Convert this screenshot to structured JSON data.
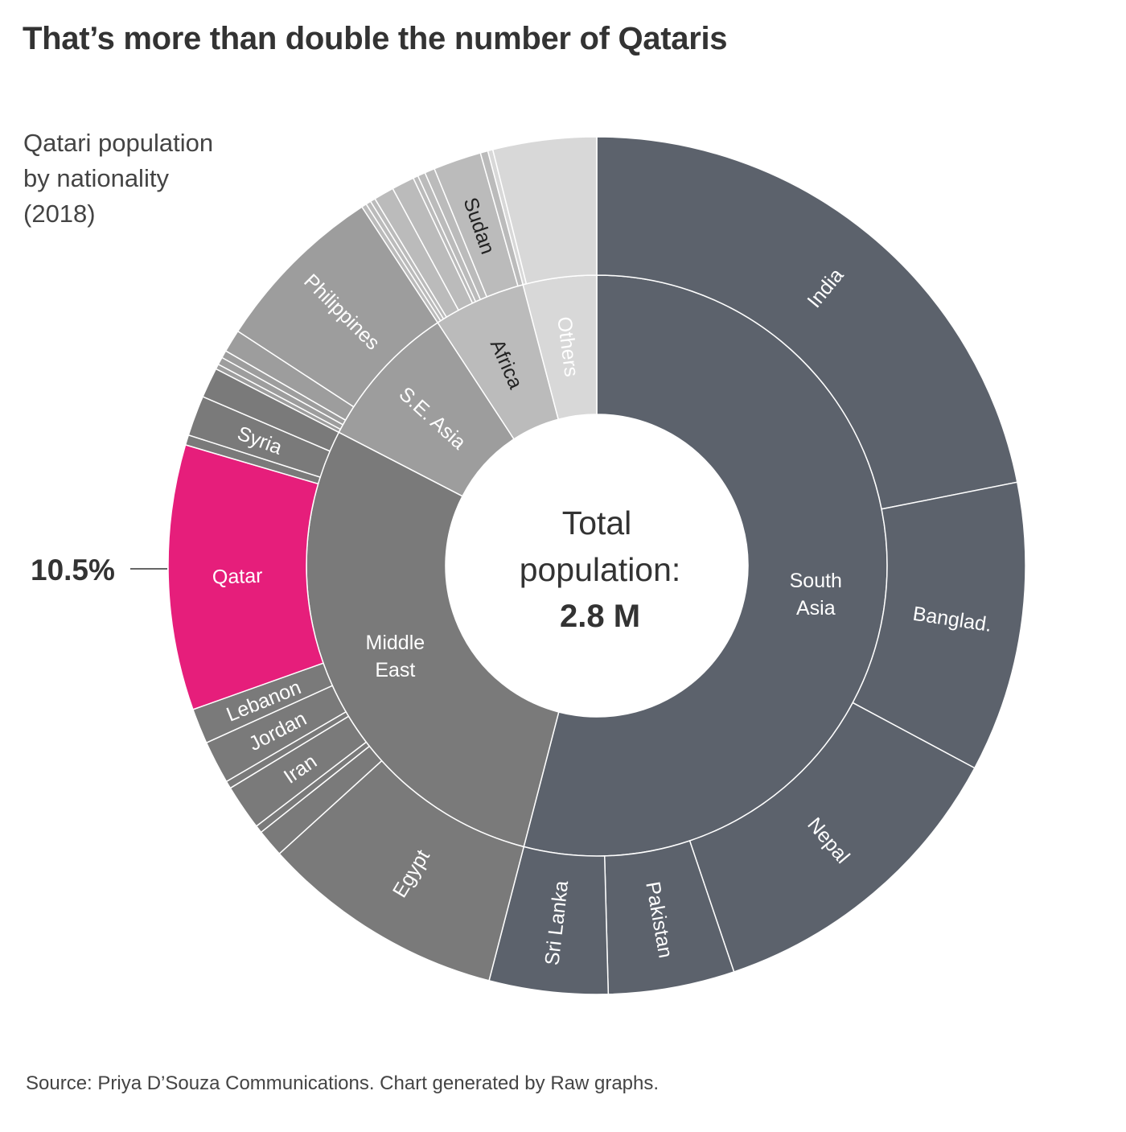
{
  "title": "That’s more than double the number of Qataris",
  "subtitle": [
    "Qatari population",
    "by nationality",
    "(2018)"
  ],
  "source": "Source: Priya D’Souza Communications. Chart generated by Raw graphs.",
  "center": {
    "line1": "Total",
    "line2": "population:",
    "value": "2.8 M"
  },
  "callout": {
    "label": "10.5%",
    "target": "Qatar"
  },
  "colors": {
    "south_asia": "#5c626c",
    "middle_east": "#7a7a7a",
    "qatar": "#e61e7b",
    "se_asia": "#9d9d9d",
    "africa": "#bbbbbb",
    "others": "#d8d8d8"
  },
  "chart_data": {
    "type": "sunburst",
    "unit": "share of total population (%)",
    "total": "2.8 M",
    "groups": [
      {
        "name": "South Asia",
        "label": "South\nAsia",
        "color": "#5c626c",
        "label_color": "#ffffff",
        "children": [
          {
            "name": "India",
            "value": 23.0,
            "label": "India",
            "label_color": "#ffffff"
          },
          {
            "name": "Banglad.",
            "value": 11.5,
            "label": "Banglad.",
            "label_color": "#ffffff"
          },
          {
            "name": "Nepal",
            "value": 12.6,
            "label": "Nepal",
            "label_color": "#ffffff"
          },
          {
            "name": "Pakistan",
            "value": 5.0,
            "label": "Pakistan",
            "label_color": "#ffffff"
          },
          {
            "name": "Sri Lanka",
            "value": 4.7,
            "label": "Sri Lanka",
            "label_color": "#ffffff"
          }
        ]
      },
      {
        "name": "Middle East",
        "label": "Middle\nEast",
        "color": "#7a7a7a",
        "label_color": "#ffffff",
        "children": [
          {
            "name": "Egypt",
            "value": 9.7,
            "label": "Egypt",
            "label_color": "#ffffff"
          },
          {
            "name": "Unlabeled 1",
            "value": 1.1,
            "label": ""
          },
          {
            "name": "Unlabeled 2",
            "value": 0.3,
            "label": ""
          },
          {
            "name": "Iran",
            "value": 1.8,
            "label": "Iran",
            "label_color": "#ffffff"
          },
          {
            "name": "Unlabeled 3",
            "value": 0.3,
            "label": ""
          },
          {
            "name": "Jordan",
            "value": 1.7,
            "label": "Jordan",
            "label_color": "#ffffff"
          },
          {
            "name": "Lebanon",
            "value": 1.4,
            "label": "Lebanon",
            "label_color": "#ffffff"
          },
          {
            "name": "Qatar",
            "value": 10.5,
            "label": "Qatar",
            "label_color": "#ffffff",
            "color": "#e61e7b"
          },
          {
            "name": "Unlabeled 4",
            "value": 0.4,
            "label": ""
          },
          {
            "name": "Syria",
            "value": 1.6,
            "label": "Syria",
            "label_color": "#ffffff"
          },
          {
            "name": "Unlabeled 5",
            "value": 1.2,
            "label": ""
          }
        ]
      },
      {
        "name": "S.E. Asia",
        "label": "S.E. Asia",
        "color": "#9d9d9d",
        "label_color": "#ffffff",
        "children": [
          {
            "name": "Unlabeled 6",
            "value": 0.2,
            "label": ""
          },
          {
            "name": "Unlabeled 7",
            "value": 0.3,
            "label": ""
          },
          {
            "name": "Unlabeled 8",
            "value": 0.3,
            "label": ""
          },
          {
            "name": "Unlabeled 9",
            "value": 0.9,
            "label": ""
          },
          {
            "name": "Philippines",
            "value": 6.9,
            "label": "Philippines",
            "label_color": "#ffffff"
          }
        ]
      },
      {
        "name": "Africa",
        "label": "Africa",
        "color": "#bbbbbb",
        "label_color": "#222222",
        "children": [
          {
            "name": "Unlabeled 10",
            "value": 0.2,
            "label": ""
          },
          {
            "name": "Unlabeled 11",
            "value": 0.2,
            "label": ""
          },
          {
            "name": "Unlabeled 12",
            "value": 0.2,
            "label": ""
          },
          {
            "name": "Unlabeled 13",
            "value": 0.8,
            "label": ""
          },
          {
            "name": "Unlabeled 14",
            "value": 0.9,
            "label": ""
          },
          {
            "name": "Unlabeled 15",
            "value": 0.2,
            "label": ""
          },
          {
            "name": "Unlabeled 16",
            "value": 0.3,
            "label": ""
          },
          {
            "name": "Unlabeled 17",
            "value": 0.4,
            "label": ""
          },
          {
            "name": "Sudan",
            "value": 1.9,
            "label": "Sudan",
            "label_color": "#222222"
          },
          {
            "name": "Unlabeled 18",
            "value": 0.3,
            "label": ""
          }
        ]
      },
      {
        "name": "Others",
        "label": "Others",
        "color": "#d8d8d8",
        "label_color": "#ffffff",
        "children": [
          {
            "name": "Unlabeled 19",
            "value": 0.2,
            "label": ""
          },
          {
            "name": "Unlabeled 20",
            "value": 4.1,
            "label": ""
          }
        ]
      }
    ]
  }
}
